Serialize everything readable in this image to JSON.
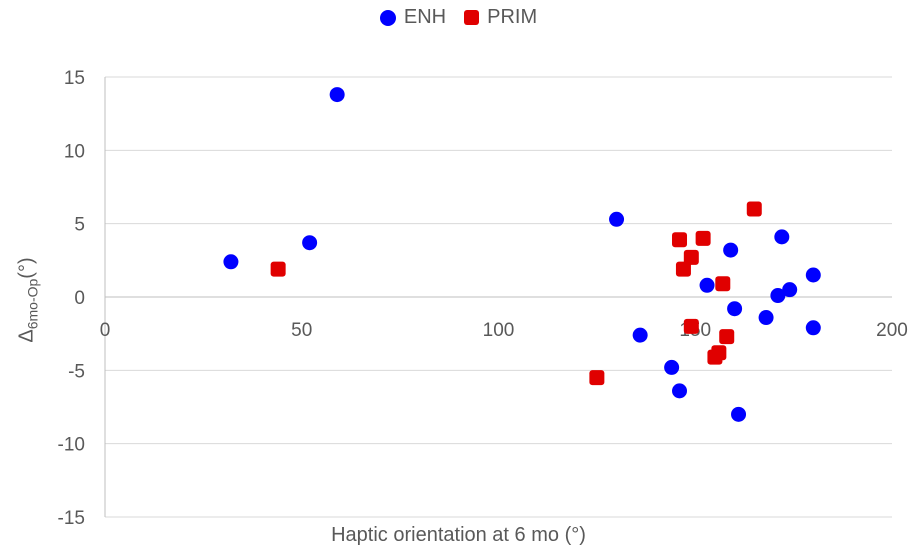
{
  "chart_data": {
    "type": "scatter",
    "title": "",
    "xlabel": "Haptic orientation at 6 mo (°)",
    "ylabel_main": "Δ",
    "ylabel_sub": "6mo-Op",
    "ylabel_unit": "(°)",
    "xlim": [
      0,
      200
    ],
    "ylim": [
      -15,
      15
    ],
    "xticks": [
      0,
      50,
      100,
      150,
      200
    ],
    "yticks": [
      -15,
      -10,
      -5,
      0,
      5,
      10,
      15
    ],
    "grid": "horizontal",
    "legend_position": "top-center",
    "series": [
      {
        "name": "ENH",
        "color": "#0000ff",
        "marker": "circle",
        "points": [
          {
            "x": 32,
            "y": 2.4
          },
          {
            "x": 52,
            "y": 3.7
          },
          {
            "x": 59,
            "y": 13.8
          },
          {
            "x": 130,
            "y": 5.3
          },
          {
            "x": 136,
            "y": -2.6
          },
          {
            "x": 144,
            "y": -4.8
          },
          {
            "x": 146,
            "y": -6.4
          },
          {
            "x": 153,
            "y": 0.8
          },
          {
            "x": 159,
            "y": 3.2
          },
          {
            "x": 160,
            "y": -0.8
          },
          {
            "x": 161,
            "y": -8.0
          },
          {
            "x": 168,
            "y": -1.4
          },
          {
            "x": 171,
            "y": 0.1
          },
          {
            "x": 172,
            "y": 4.1
          },
          {
            "x": 174,
            "y": 0.5
          },
          {
            "x": 180,
            "y": 1.5
          },
          {
            "x": 180,
            "y": -2.1
          }
        ]
      },
      {
        "name": "PRIM",
        "color": "#e00000",
        "marker": "square",
        "points": [
          {
            "x": 44,
            "y": 1.9
          },
          {
            "x": 125,
            "y": -5.5
          },
          {
            "x": 146,
            "y": 3.9
          },
          {
            "x": 147,
            "y": 1.9
          },
          {
            "x": 149,
            "y": 2.7
          },
          {
            "x": 149,
            "y": -2.0
          },
          {
            "x": 152,
            "y": 4.0
          },
          {
            "x": 155,
            "y": -4.1
          },
          {
            "x": 156,
            "y": -3.8
          },
          {
            "x": 157,
            "y": 0.9
          },
          {
            "x": 158,
            "y": -2.7
          },
          {
            "x": 165,
            "y": 6.0
          }
        ]
      }
    ]
  }
}
